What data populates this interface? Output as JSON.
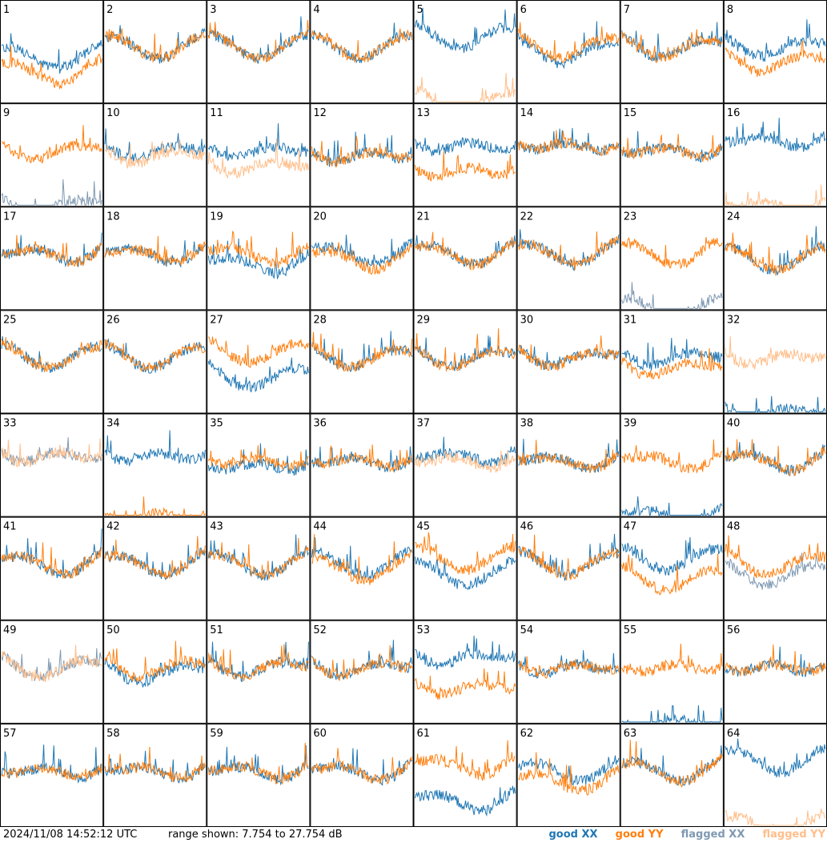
{
  "footer": {
    "timestamp": "2024/11/08 14:52:12 UTC",
    "range_text": "range shown: 7.754 to 27.754 dB"
  },
  "legend": {
    "good_xx": "good XX",
    "good_yy": "good YY",
    "flagged_xx": "flagged XX",
    "flagged_yy": "flagged YY"
  },
  "colors": {
    "good_xx": "#1f77b4",
    "good_yy": "#ff7f0e",
    "flagged_xx": "#7f99b2",
    "flagged_yy": "#ffbe8a"
  },
  "chart_data": {
    "type": "line",
    "ylim": [
      7.754,
      27.754
    ],
    "units": "dB",
    "panels": [
      {
        "id": 1,
        "xx": "good",
        "yy": "good",
        "xx_level": 18,
        "yy_level": 15
      },
      {
        "id": 2,
        "xx": "good",
        "yy": "good",
        "xx_level": 20,
        "yy_level": 20
      },
      {
        "id": 3,
        "xx": "good",
        "yy": "good",
        "xx_level": 20,
        "yy_level": 20
      },
      {
        "id": 4,
        "xx": "good",
        "yy": "good",
        "xx_level": 20,
        "yy_level": 20
      },
      {
        "id": 5,
        "xx": "good",
        "yy": "flagged",
        "xx_level": 22,
        "yy_level": 9
      },
      {
        "id": 6,
        "xx": "good",
        "yy": "good",
        "xx_level": 19,
        "yy_level": 20
      },
      {
        "id": 7,
        "xx": "good",
        "yy": "good",
        "xx_level": 20,
        "yy_level": 20
      },
      {
        "id": 8,
        "xx": "good",
        "yy": "good",
        "xx_level": 20,
        "yy_level": 17
      },
      {
        "id": 9,
        "xx": "flagged",
        "yy": "good",
        "xx_level": 9,
        "yy_level": 20
      },
      {
        "id": 10,
        "xx": "good",
        "yy": "flagged",
        "xx_level": 20,
        "yy_level": 19
      },
      {
        "id": 11,
        "xx": "good",
        "yy": "flagged",
        "xx_level": 20,
        "yy_level": 17
      },
      {
        "id": 12,
        "xx": "good",
        "yy": "good",
        "xx_level": 19,
        "yy_level": 19
      },
      {
        "id": 13,
        "xx": "good",
        "yy": "good",
        "xx_level": 21,
        "yy_level": 16
      },
      {
        "id": 14,
        "xx": "good",
        "yy": "good",
        "xx_level": 21,
        "yy_level": 21
      },
      {
        "id": 15,
        "xx": "good",
        "yy": "good",
        "xx_level": 20,
        "yy_level": 20
      },
      {
        "id": 16,
        "xx": "good",
        "yy": "flagged",
        "xx_level": 22,
        "yy_level": 9
      },
      {
        "id": 17,
        "xx": "good",
        "yy": "good",
        "xx_level": 20,
        "yy_level": 20
      },
      {
        "id": 18,
        "xx": "good",
        "yy": "good",
        "xx_level": 20,
        "yy_level": 20
      },
      {
        "id": 19,
        "xx": "good",
        "yy": "good",
        "xx_level": 18,
        "yy_level": 20
      },
      {
        "id": 20,
        "xx": "good",
        "yy": "good",
        "xx_level": 20,
        "yy_level": 19
      },
      {
        "id": 21,
        "xx": "good",
        "yy": "good",
        "xx_level": 20,
        "yy_level": 20
      },
      {
        "id": 22,
        "xx": "good",
        "yy": "good",
        "xx_level": 20,
        "yy_level": 20
      },
      {
        "id": 23,
        "xx": "flagged",
        "yy": "good",
        "xx_level": 9,
        "yy_level": 20
      },
      {
        "id": 24,
        "xx": "good",
        "yy": "good",
        "xx_level": 19,
        "yy_level": 19
      },
      {
        "id": 25,
        "xx": "good",
        "yy": "good",
        "xx_level": 20,
        "yy_level": 20
      },
      {
        "id": 26,
        "xx": "good",
        "yy": "good",
        "xx_level": 20,
        "yy_level": 20
      },
      {
        "id": 27,
        "xx": "good",
        "yy": "good",
        "xx_level": 16,
        "yy_level": 21
      },
      {
        "id": 28,
        "xx": "good",
        "yy": "good",
        "xx_level": 20,
        "yy_level": 20
      },
      {
        "id": 29,
        "xx": "good",
        "yy": "good",
        "xx_level": 20,
        "yy_level": 20
      },
      {
        "id": 30,
        "xx": "good",
        "yy": "good",
        "xx_level": 20,
        "yy_level": 20
      },
      {
        "id": 31,
        "xx": "good",
        "yy": "good",
        "xx_level": 20,
        "yy_level": 18
      },
      {
        "id": 32,
        "xx": "good",
        "yy": "flagged",
        "xx_level": 9,
        "yy_level": 20
      },
      {
        "id": 33,
        "xx": "flagged",
        "yy": "flagged",
        "xx_level": 21,
        "yy_level": 21
      },
      {
        "id": 34,
        "xx": "good",
        "yy": "good",
        "xx_level": 21,
        "yy_level": 9
      },
      {
        "id": 35,
        "xx": "good",
        "yy": "good",
        "xx_level": 19,
        "yy_level": 20
      },
      {
        "id": 36,
        "xx": "good",
        "yy": "good",
        "xx_level": 20,
        "yy_level": 20
      },
      {
        "id": 37,
        "xx": "good",
        "yy": "flagged",
        "xx_level": 21,
        "yy_level": 20
      },
      {
        "id": 38,
        "xx": "good",
        "yy": "good",
        "xx_level": 20,
        "yy_level": 20
      },
      {
        "id": 39,
        "xx": "good",
        "yy": "good",
        "xx_level": 9,
        "yy_level": 20
      },
      {
        "id": 40,
        "xx": "good",
        "yy": "good",
        "xx_level": 20,
        "yy_level": 20
      },
      {
        "id": 41,
        "xx": "good",
        "yy": "good",
        "xx_level": 20,
        "yy_level": 20
      },
      {
        "id": 42,
        "xx": "good",
        "yy": "good",
        "xx_level": 20,
        "yy_level": 20
      },
      {
        "id": 43,
        "xx": "good",
        "yy": "good",
        "xx_level": 20,
        "yy_level": 20
      },
      {
        "id": 44,
        "xx": "good",
        "yy": "good",
        "xx_level": 20,
        "yy_level": 19
      },
      {
        "id": 45,
        "xx": "good",
        "yy": "good",
        "xx_level": 18,
        "yy_level": 21
      },
      {
        "id": 46,
        "xx": "good",
        "yy": "good",
        "xx_level": 20,
        "yy_level": 20
      },
      {
        "id": 47,
        "xx": "good",
        "yy": "good",
        "xx_level": 21,
        "yy_level": 17
      },
      {
        "id": 48,
        "xx": "flagged",
        "yy": "good",
        "xx_level": 18,
        "yy_level": 20
      },
      {
        "id": 49,
        "xx": "flagged",
        "yy": "flagged",
        "xx_level": 20,
        "yy_level": 20
      },
      {
        "id": 50,
        "xx": "good",
        "yy": "good",
        "xx_level": 19,
        "yy_level": 20
      },
      {
        "id": 51,
        "xx": "good",
        "yy": "good",
        "xx_level": 20,
        "yy_level": 20
      },
      {
        "id": 52,
        "xx": "good",
        "yy": "good",
        "xx_level": 20,
        "yy_level": 20
      },
      {
        "id": 53,
        "xx": "good",
        "yy": "good",
        "xx_level": 22,
        "yy_level": 16
      },
      {
        "id": 54,
        "xx": "good",
        "yy": "good",
        "xx_level": 20,
        "yy_level": 20
      },
      {
        "id": 55,
        "xx": "good",
        "yy": "good",
        "xx_level": 9,
        "yy_level": 20
      },
      {
        "id": 56,
        "xx": "good",
        "yy": "good",
        "xx_level": 20,
        "yy_level": 20
      },
      {
        "id": 57,
        "xx": "good",
        "yy": "good",
        "xx_level": 20,
        "yy_level": 20
      },
      {
        "id": 58,
        "xx": "good",
        "yy": "good",
        "xx_level": 20,
        "yy_level": 20
      },
      {
        "id": 59,
        "xx": "good",
        "yy": "good",
        "xx_level": 20,
        "yy_level": 20
      },
      {
        "id": 60,
        "xx": "good",
        "yy": "good",
        "xx_level": 20,
        "yy_level": 20
      },
      {
        "id": 61,
        "xx": "good",
        "yy": "good",
        "xx_level": 14,
        "yy_level": 21
      },
      {
        "id": 62,
        "xx": "good",
        "yy": "good",
        "xx_level": 20,
        "yy_level": 18
      },
      {
        "id": 63,
        "xx": "good",
        "yy": "good",
        "xx_level": 20,
        "yy_level": 20
      },
      {
        "id": 64,
        "xx": "good",
        "yy": "flagged",
        "xx_level": 22,
        "yy_level": 9
      }
    ]
  }
}
